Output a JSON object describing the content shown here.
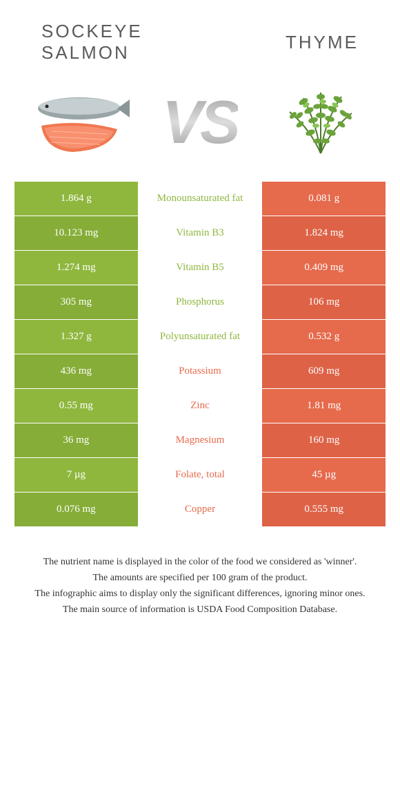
{
  "header": {
    "left_title": "Sockeye salmon",
    "right_title": "Thyme",
    "vs": "VS"
  },
  "colors": {
    "left": "#8fb73e",
    "right": "#e66a4c",
    "left_alt": "#85ad38",
    "right_alt": "#de6246",
    "mid_text_left": "#8fb73e",
    "mid_text_right": "#e66a4c"
  },
  "rows": [
    {
      "left": "1.864 g",
      "mid": "Monounsaturated fat",
      "right": "0.081 g",
      "winner": "left"
    },
    {
      "left": "10.123 mg",
      "mid": "Vitamin B3",
      "right": "1.824 mg",
      "winner": "left"
    },
    {
      "left": "1.274 mg",
      "mid": "Vitamin B5",
      "right": "0.409 mg",
      "winner": "left"
    },
    {
      "left": "305 mg",
      "mid": "Phosphorus",
      "right": "106 mg",
      "winner": "left"
    },
    {
      "left": "1.327 g",
      "mid": "Polyunsaturated fat",
      "right": "0.532 g",
      "winner": "left"
    },
    {
      "left": "436 mg",
      "mid": "Potassium",
      "right": "609 mg",
      "winner": "right"
    },
    {
      "left": "0.55 mg",
      "mid": "Zinc",
      "right": "1.81 mg",
      "winner": "right"
    },
    {
      "left": "36 mg",
      "mid": "Magnesium",
      "right": "160 mg",
      "winner": "right"
    },
    {
      "left": "7 µg",
      "mid": "Folate, total",
      "right": "45 µg",
      "winner": "right"
    },
    {
      "left": "0.076 mg",
      "mid": "Copper",
      "right": "0.555 mg",
      "winner": "right"
    }
  ],
  "footer": {
    "line1": "The nutrient name is displayed in the color of the food we considered as 'winner'.",
    "line2": "The amounts are specified per 100 gram of the product.",
    "line3": "The infographic aims to display only the significant differences, ignoring minor ones.",
    "line4": "The main source of information is USDA Food Composition Database."
  }
}
